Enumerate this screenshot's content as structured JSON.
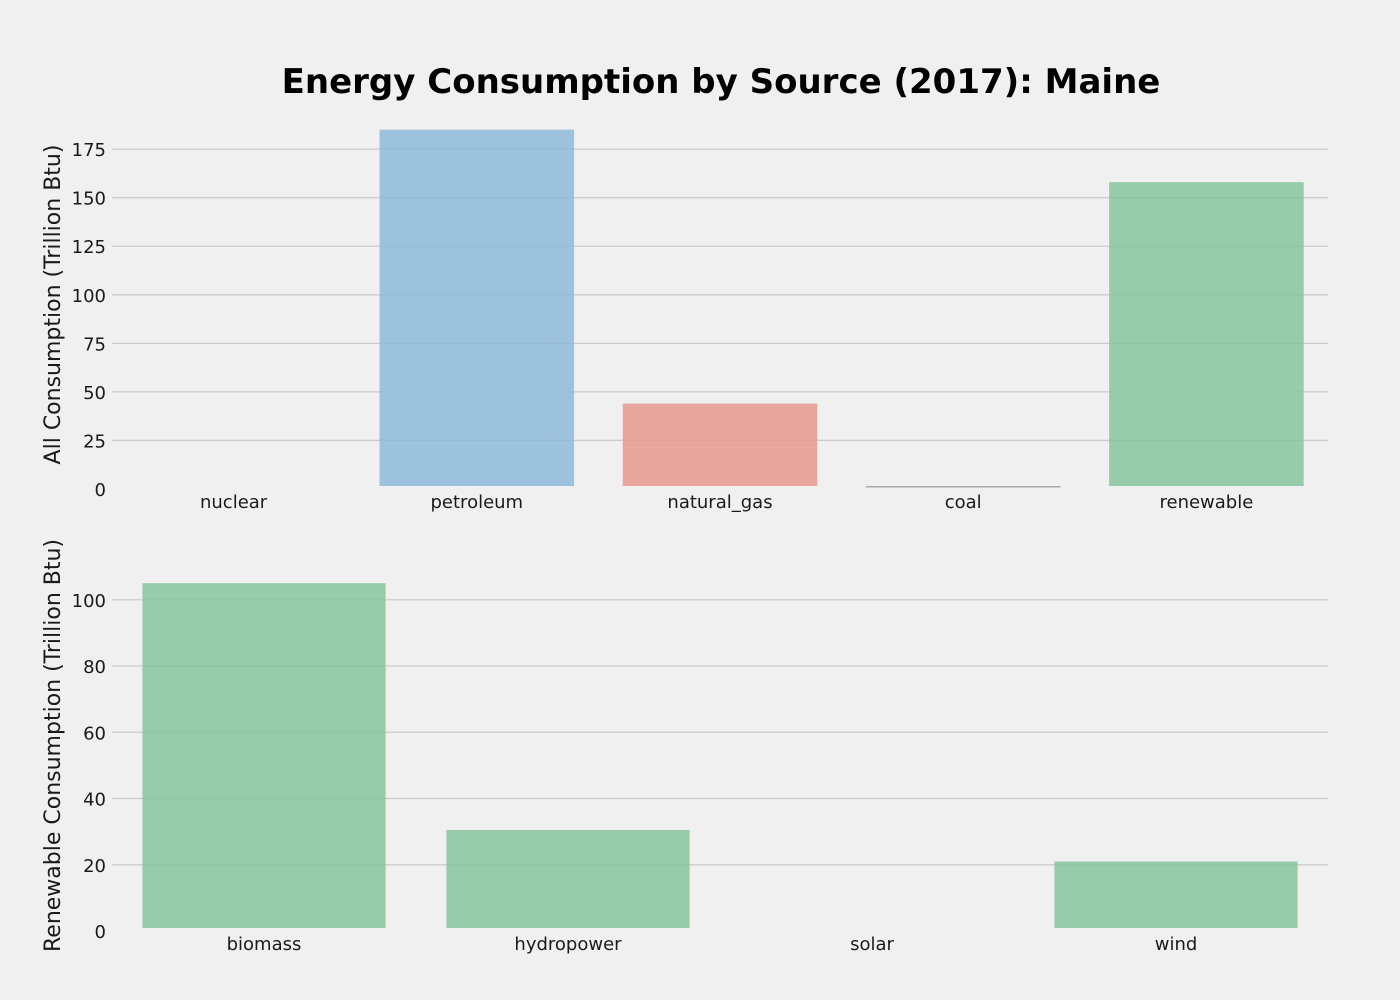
{
  "title": "Energy Consumption by Source (2017): Maine",
  "chart_data": [
    {
      "type": "bar",
      "ylabel": "All Consumption (Trillion Btu)",
      "categories": [
        "nuclear",
        "petroleum",
        "natural_gas",
        "coal",
        "renewable"
      ],
      "values": [
        0,
        185,
        44,
        0.3,
        158
      ],
      "colors": [
        "#8ebad9",
        "#8ebad9",
        "#e8998d",
        "#9e9e9e",
        "#86c59e"
      ],
      "ylim": [
        0,
        190
      ],
      "yticks": [
        0,
        25,
        50,
        75,
        100,
        125,
        150,
        175
      ],
      "grid": true
    },
    {
      "type": "bar",
      "ylabel": "Renewable Consumption (Trillion Btu)",
      "categories": [
        "biomass",
        "hydropower",
        "solar",
        "wind"
      ],
      "values": [
        105,
        30.5,
        0,
        21
      ],
      "colors": [
        "#86c59e",
        "#86c59e",
        "#86c59e",
        "#86c59e"
      ],
      "ylim": [
        0,
        112
      ],
      "yticks": [
        0,
        20,
        40,
        60,
        80,
        100
      ],
      "grid": true
    }
  ]
}
